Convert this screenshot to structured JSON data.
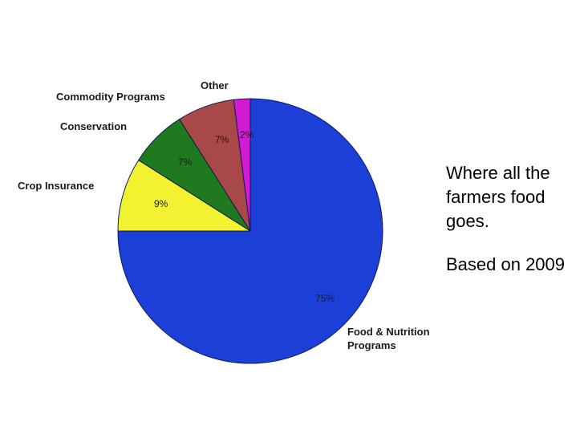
{
  "chart_data": {
    "type": "pie",
    "title": "",
    "slices": [
      {
        "label": "Food & Nutrition\nPrograms",
        "value": 75,
        "value_label": "75%",
        "color": "#1c3fd8"
      },
      {
        "label": "Crop Insurance",
        "value": 9,
        "value_label": "9%",
        "color": "#f2f230"
      },
      {
        "label": "Conservation",
        "value": 7,
        "value_label": "7%",
        "color": "#1f7a1f"
      },
      {
        "label": "Commodity Programs",
        "value": 7,
        "value_label": "7%",
        "color": "#a84848"
      },
      {
        "label": "Other",
        "value": 2,
        "value_label": "2%",
        "color": "#d11ad1"
      }
    ]
  },
  "caption": {
    "line1": "Where all the farmers food goes.",
    "line2": "Based on 2009"
  },
  "colors": {
    "edge": "#0d1a5a",
    "background": "#ffffff",
    "text": "#000000"
  }
}
